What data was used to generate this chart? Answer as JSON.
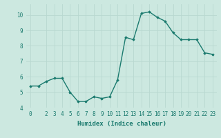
{
  "x": [
    0,
    1,
    2,
    3,
    4,
    5,
    6,
    7,
    8,
    9,
    10,
    11,
    12,
    13,
    14,
    15,
    16,
    17,
    18,
    19,
    20,
    21,
    22,
    23
  ],
  "y": [
    5.4,
    5.4,
    5.7,
    5.9,
    5.9,
    5.0,
    4.4,
    4.4,
    4.7,
    4.6,
    4.7,
    5.8,
    8.55,
    8.4,
    10.1,
    10.2,
    9.85,
    9.6,
    8.85,
    8.4,
    8.4,
    8.4,
    7.55,
    7.45
  ],
  "line_color": "#1a7a6e",
  "marker": "D",
  "marker_size": 1.8,
  "line_width": 1.0,
  "xlabel": "Humidex (Indice chaleur)",
  "xlabel_fontsize": 6.5,
  "xlim": [
    -0.5,
    23.5
  ],
  "ylim": [
    4,
    10.7
  ],
  "yticks": [
    4,
    5,
    6,
    7,
    8,
    9,
    10
  ],
  "xticks": [
    0,
    2,
    3,
    4,
    5,
    6,
    7,
    8,
    9,
    10,
    11,
    12,
    13,
    14,
    15,
    16,
    17,
    18,
    19,
    20,
    21,
    22,
    23
  ],
  "bg_color": "#cce8e0",
  "grid_color": "#b8d8d0",
  "tick_color": "#1a7a6e",
  "tick_fontsize": 5.5,
  "font_family": "monospace"
}
